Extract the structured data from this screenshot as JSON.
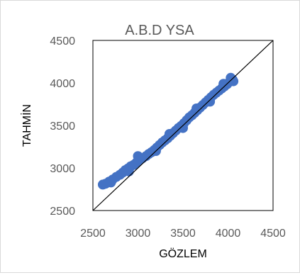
{
  "chart_data": {
    "type": "scatter",
    "title": "A.B.D YSA",
    "xlabel": "GÖZLEM",
    "ylabel": "TAHMİN",
    "xlim": [
      2500,
      4500
    ],
    "ylim": [
      2500,
      4500
    ],
    "xticks": [
      "2500",
      "3000",
      "3500",
      "4000",
      "4500"
    ],
    "yticks": [
      "2500",
      "3000",
      "3500",
      "4000",
      "4500"
    ],
    "grid": false,
    "legend": "none",
    "point_color": "#4472C4",
    "reference_line": {
      "from": [
        2500,
        2500
      ],
      "to": [
        4500,
        4500
      ],
      "color": "#000000"
    },
    "series": [
      {
        "points": [
          [
            2610,
            2805
          ],
          [
            2640,
            2815
          ],
          [
            2680,
            2840
          ],
          [
            2720,
            2865
          ],
          [
            2760,
            2895
          ],
          [
            2800,
            2920
          ],
          [
            2830,
            2945
          ],
          [
            2860,
            2975
          ],
          [
            2890,
            2995
          ],
          [
            2920,
            3020
          ],
          [
            2950,
            3035
          ],
          [
            2980,
            3060
          ],
          [
            3010,
            3090
          ],
          [
            3050,
            3115
          ],
          [
            3090,
            3140
          ],
          [
            3120,
            3165
          ],
          [
            3150,
            3185
          ],
          [
            3180,
            3210
          ],
          [
            3210,
            3240
          ],
          [
            3240,
            3270
          ],
          [
            3270,
            3300
          ],
          [
            3300,
            3325
          ],
          [
            3330,
            3350
          ],
          [
            3360,
            3380
          ],
          [
            3390,
            3410
          ],
          [
            3420,
            3440
          ],
          [
            3450,
            3470
          ],
          [
            3480,
            3495
          ],
          [
            3510,
            3525
          ],
          [
            3540,
            3560
          ],
          [
            3570,
            3595
          ],
          [
            3600,
            3620
          ],
          [
            3630,
            3650
          ],
          [
            3660,
            3680
          ],
          [
            3690,
            3710
          ],
          [
            3720,
            3740
          ],
          [
            3750,
            3770
          ],
          [
            3780,
            3800
          ],
          [
            3810,
            3830
          ],
          [
            3840,
            3860
          ],
          [
            3870,
            3885
          ],
          [
            3900,
            3910
          ],
          [
            3930,
            3935
          ],
          [
            3960,
            3960
          ],
          [
            3990,
            3985
          ],
          [
            4020,
            4015
          ],
          [
            4050,
            4040
          ],
          [
            4060,
            4020
          ],
          [
            2700,
            2830
          ],
          [
            2900,
            2960
          ],
          [
            3000,
            3140
          ],
          [
            3200,
            3200
          ],
          [
            3350,
            3400
          ],
          [
            3500,
            3470
          ],
          [
            3650,
            3700
          ],
          [
            3800,
            3780
          ],
          [
            3950,
            3990
          ],
          [
            4030,
            4060
          ]
        ]
      }
    ]
  }
}
